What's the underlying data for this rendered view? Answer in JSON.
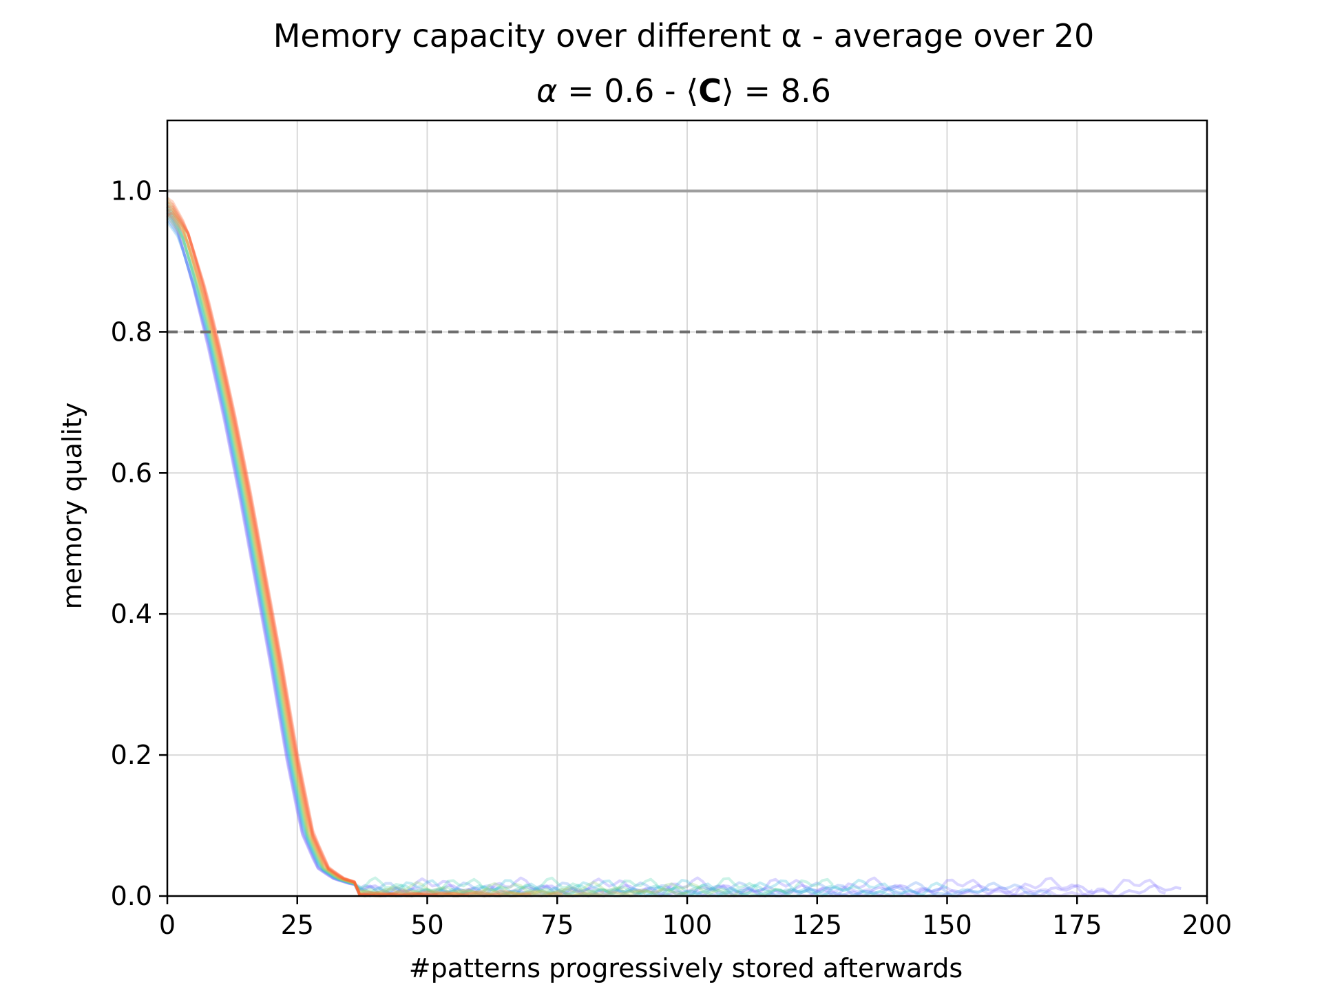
{
  "chart_data": {
    "type": "line",
    "title": "Memory capacity over different α - average over 20",
    "subtitle_parts": {
      "alpha_symbol": "α",
      "alpha_text": " = 0.6 - ⟨",
      "c_symbol": "C",
      "c_text": "⟩ = 8.6"
    },
    "xlabel": "#patterns progressively stored afterwards",
    "ylabel": "memory quality",
    "xlim": [
      0,
      200
    ],
    "ylim": [
      0,
      1.1
    ],
    "x_ticks": [
      0,
      25,
      50,
      75,
      100,
      125,
      150,
      175,
      200
    ],
    "x_tick_labels": [
      "0",
      "25",
      "50",
      "75",
      "100",
      "125",
      "150",
      "175",
      "200"
    ],
    "y_ticks": [
      0.0,
      0.2,
      0.4,
      0.6,
      0.8,
      1.0
    ],
    "y_tick_labels": [
      "0.0",
      "0.2",
      "0.4",
      "0.6",
      "0.8",
      "1.0"
    ],
    "grid": true,
    "reference_lines": [
      {
        "y": 1.0,
        "style": "solid",
        "color": "#9e9e9e"
      },
      {
        "y": 0.8,
        "style": "dashed",
        "color": "#6e6e6e"
      }
    ],
    "series_count": 20,
    "series_colors": [
      "#6a5cff",
      "#7f6cff",
      "#8f7eff",
      "#4f8df0",
      "#3fa6e8",
      "#2bbad9",
      "#33c9c4",
      "#48d4ad",
      "#66d98f",
      "#8bd56f",
      "#adc95a",
      "#c9b94d",
      "#deaa47",
      "#ee9840",
      "#f7843a",
      "#fb7035",
      "#fd5e2f",
      "#ff4f2a",
      "#f96a3a",
      "#ff5a30"
    ],
    "series_end_x": [
      195,
      192,
      178,
      170,
      158,
      150,
      140,
      128,
      120,
      110,
      100,
      92,
      84,
      76,
      70,
      64,
      58,
      52,
      46,
      40
    ],
    "tail_level": [
      0.012,
      0.02,
      0.01,
      0.015,
      0.008,
      0.018,
      0.012,
      0.02,
      0.01,
      0.015,
      0.008,
      0.006,
      0.005,
      0.006,
      0.004,
      0.004,
      0.003,
      0.003,
      0.002,
      0.002
    ],
    "representative_curve": {
      "x": [
        0,
        3,
        6,
        9,
        12,
        15,
        18,
        21,
        24,
        27,
        30,
        33,
        36,
        40,
        45
      ],
      "y": [
        0.99,
        0.95,
        0.87,
        0.78,
        0.68,
        0.57,
        0.45,
        0.33,
        0.2,
        0.09,
        0.04,
        0.025,
        0.018,
        0.012,
        0.01
      ]
    }
  }
}
